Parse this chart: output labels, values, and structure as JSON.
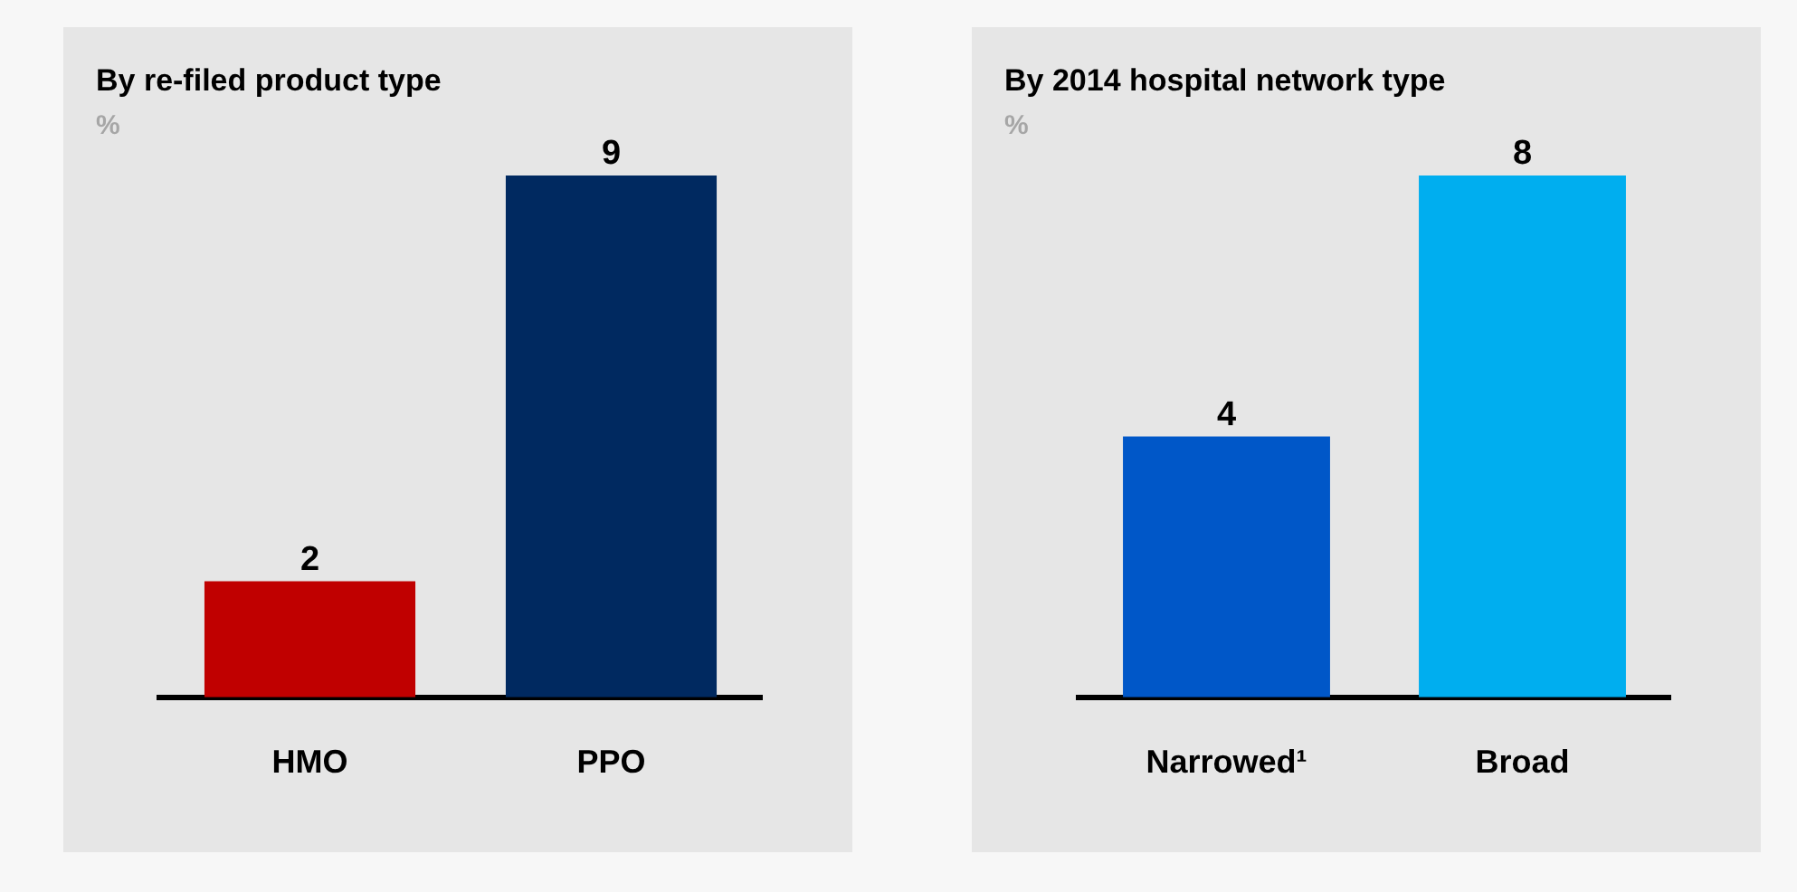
{
  "chart_data": [
    {
      "type": "bar",
      "title": "By re-filed product type",
      "subtitle": "%",
      "categories": [
        "HMO",
        "PPO"
      ],
      "values": [
        2,
        9
      ],
      "colors": [
        "#c00000",
        "#002960"
      ],
      "data_labels": true,
      "relative": false
    },
    {
      "type": "bar",
      "title": "By 2014 hospital network type",
      "subtitle": "%",
      "categories": [
        "Narrowed¹",
        "Broad"
      ],
      "values": [
        4,
        8
      ],
      "colors": [
        "#0057c8",
        "#00aeef"
      ],
      "data_labels": true,
      "relative": false
    }
  ]
}
